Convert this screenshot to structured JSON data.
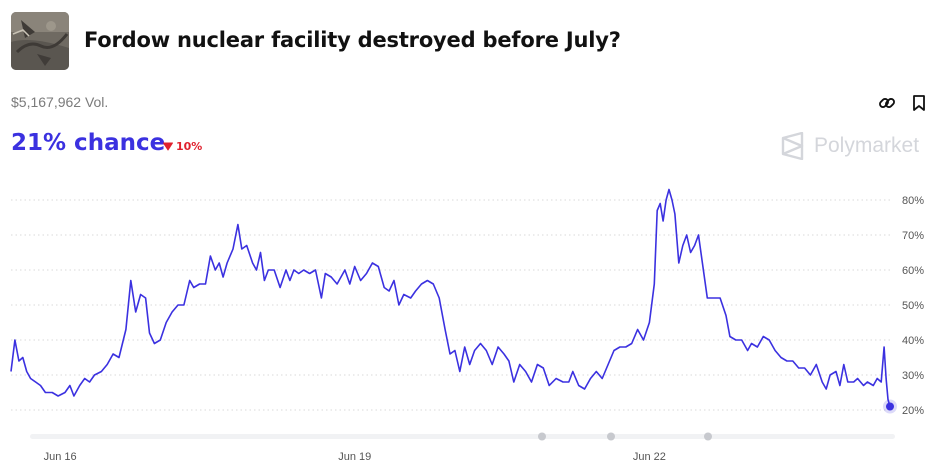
{
  "market": {
    "title": "Fordow nuclear facility destroyed before July?",
    "volume": "$5,167,962 Vol.",
    "chance_label": "21% chance",
    "change": "10%",
    "change_direction": "down",
    "brand": "Polymarket"
  },
  "colors": {
    "accent": "#3b31e0",
    "negative": "#e0212e",
    "brand": "#d4d6db",
    "gridline": "#d9d9d9"
  },
  "icons": [
    "link-icon",
    "bookmark-icon",
    "polymarket-logo-icon",
    "caret-down-icon"
  ],
  "chart_data": {
    "type": "line",
    "title": "",
    "xlabel": "",
    "ylabel": "",
    "ylim": [
      16,
      84
    ],
    "ytick_values": [
      20,
      30,
      40,
      50,
      60,
      70,
      80
    ],
    "ytick_labels": [
      "20%",
      "30%",
      "40%",
      "50%",
      "60%",
      "70%",
      "80%"
    ],
    "xtick_labels": [
      "Jun 16",
      "Jun 19",
      "Jun 22"
    ],
    "xtick_positions": [
      16.5,
      19.5,
      22.5
    ],
    "x_range": [
      16.0,
      24.95
    ],
    "grid": true,
    "series": [
      {
        "name": "",
        "points": [
          [
            16.0,
            31
          ],
          [
            16.04,
            40
          ],
          [
            16.08,
            34
          ],
          [
            16.12,
            35
          ],
          [
            16.16,
            31
          ],
          [
            16.2,
            29
          ],
          [
            16.25,
            28
          ],
          [
            16.3,
            27
          ],
          [
            16.35,
            25
          ],
          [
            16.42,
            25
          ],
          [
            16.48,
            24
          ],
          [
            16.55,
            25
          ],
          [
            16.6,
            27
          ],
          [
            16.64,
            24
          ],
          [
            16.7,
            27
          ],
          [
            16.75,
            29
          ],
          [
            16.8,
            28
          ],
          [
            16.85,
            30
          ],
          [
            16.92,
            31
          ],
          [
            16.98,
            33
          ],
          [
            17.04,
            36
          ],
          [
            17.1,
            35
          ],
          [
            17.17,
            43
          ],
          [
            17.22,
            57
          ],
          [
            17.27,
            48
          ],
          [
            17.32,
            53
          ],
          [
            17.37,
            52
          ],
          [
            17.41,
            42
          ],
          [
            17.46,
            39
          ],
          [
            17.52,
            40
          ],
          [
            17.58,
            45
          ],
          [
            17.64,
            48
          ],
          [
            17.7,
            50
          ],
          [
            17.76,
            50
          ],
          [
            17.82,
            57
          ],
          [
            17.86,
            55
          ],
          [
            17.92,
            56
          ],
          [
            17.98,
            56
          ],
          [
            18.03,
            64
          ],
          [
            18.08,
            60
          ],
          [
            18.12,
            62
          ],
          [
            18.16,
            58
          ],
          [
            18.2,
            62
          ],
          [
            18.26,
            66
          ],
          [
            18.31,
            73
          ],
          [
            18.35,
            66
          ],
          [
            18.4,
            67
          ],
          [
            18.46,
            62
          ],
          [
            18.5,
            60
          ],
          [
            18.54,
            65
          ],
          [
            18.58,
            57
          ],
          [
            18.62,
            60
          ],
          [
            18.68,
            60
          ],
          [
            18.74,
            55
          ],
          [
            18.8,
            60
          ],
          [
            18.84,
            57
          ],
          [
            18.88,
            60
          ],
          [
            18.93,
            59
          ],
          [
            18.98,
            60
          ],
          [
            19.04,
            59
          ],
          [
            19.1,
            60
          ],
          [
            19.16,
            52
          ],
          [
            19.2,
            59
          ],
          [
            19.26,
            58
          ],
          [
            19.32,
            56
          ],
          [
            19.4,
            60
          ],
          [
            19.45,
            56
          ],
          [
            19.5,
            61
          ],
          [
            19.56,
            57
          ],
          [
            19.62,
            59
          ],
          [
            19.68,
            62
          ],
          [
            19.74,
            61
          ],
          [
            19.8,
            55
          ],
          [
            19.85,
            54
          ],
          [
            19.9,
            57
          ],
          [
            19.95,
            50
          ],
          [
            20.0,
            53
          ],
          [
            20.07,
            52
          ],
          [
            20.12,
            54
          ],
          [
            20.18,
            56
          ],
          [
            20.24,
            57
          ],
          [
            20.3,
            56
          ],
          [
            20.36,
            52
          ],
          [
            20.42,
            43
          ],
          [
            20.47,
            36
          ],
          [
            20.52,
            37
          ],
          [
            20.57,
            31
          ],
          [
            20.62,
            38
          ],
          [
            20.67,
            33
          ],
          [
            20.72,
            37
          ],
          [
            20.78,
            39
          ],
          [
            20.84,
            37
          ],
          [
            20.9,
            33
          ],
          [
            20.96,
            38
          ],
          [
            21.02,
            36
          ],
          [
            21.07,
            34
          ],
          [
            21.12,
            28
          ],
          [
            21.18,
            33
          ],
          [
            21.24,
            31
          ],
          [
            21.3,
            28
          ],
          [
            21.36,
            33
          ],
          [
            21.42,
            32
          ],
          [
            21.48,
            27
          ],
          [
            21.55,
            29
          ],
          [
            21.62,
            28
          ],
          [
            21.68,
            28
          ],
          [
            21.72,
            31
          ],
          [
            21.78,
            27
          ],
          [
            21.84,
            26
          ],
          [
            21.9,
            29
          ],
          [
            21.96,
            31
          ],
          [
            22.02,
            29
          ],
          [
            22.08,
            33
          ],
          [
            22.14,
            37
          ],
          [
            22.2,
            38
          ],
          [
            22.26,
            38
          ],
          [
            22.32,
            39
          ],
          [
            22.38,
            43
          ],
          [
            22.44,
            40
          ],
          [
            22.5,
            45
          ],
          [
            22.55,
            56
          ],
          [
            22.58,
            77
          ],
          [
            22.61,
            79
          ],
          [
            22.64,
            74
          ],
          [
            22.67,
            80
          ],
          [
            22.7,
            83
          ],
          [
            22.73,
            80
          ],
          [
            22.76,
            76
          ],
          [
            22.8,
            62
          ],
          [
            22.84,
            67
          ],
          [
            22.88,
            70
          ],
          [
            22.92,
            65
          ],
          [
            22.96,
            67
          ],
          [
            23.0,
            70
          ],
          [
            23.04,
            62
          ],
          [
            23.09,
            52
          ],
          [
            23.15,
            52
          ],
          [
            23.22,
            52
          ],
          [
            23.28,
            47
          ],
          [
            23.32,
            41
          ],
          [
            23.38,
            40
          ],
          [
            23.44,
            40
          ],
          [
            23.5,
            37
          ],
          [
            23.54,
            39
          ],
          [
            23.6,
            38
          ],
          [
            23.66,
            41
          ],
          [
            23.72,
            40
          ],
          [
            23.78,
            37
          ],
          [
            23.84,
            35
          ],
          [
            23.9,
            34
          ],
          [
            23.96,
            34
          ],
          [
            24.02,
            32
          ],
          [
            24.08,
            32
          ],
          [
            24.14,
            30
          ],
          [
            24.2,
            33
          ],
          [
            24.26,
            28
          ],
          [
            24.3,
            26
          ],
          [
            24.34,
            30
          ],
          [
            24.4,
            31
          ],
          [
            24.44,
            27
          ],
          [
            24.48,
            33
          ],
          [
            24.52,
            28
          ],
          [
            24.58,
            28
          ],
          [
            24.62,
            29
          ],
          [
            24.68,
            27
          ],
          [
            24.72,
            28
          ],
          [
            24.78,
            27
          ],
          [
            24.82,
            29
          ],
          [
            24.86,
            28
          ],
          [
            24.89,
            38
          ],
          [
            24.91,
            29
          ],
          [
            24.93,
            23
          ],
          [
            24.95,
            21
          ]
        ]
      }
    ],
    "current_point": [
      24.95,
      21
    ],
    "slider_markers": 3
  }
}
